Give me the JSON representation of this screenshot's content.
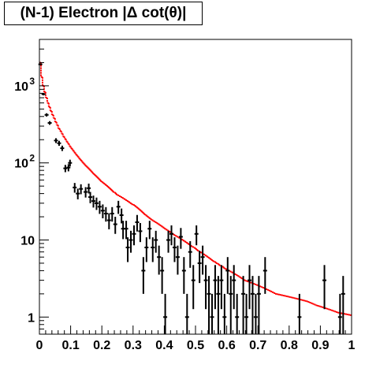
{
  "chart_data": {
    "type": "scatter",
    "title": "(N-1) Electron |Δ cot(θ)|",
    "xlabel": "",
    "ylabel": "",
    "xlim": [
      0,
      1
    ],
    "ylim": [
      0.6,
      4000
    ],
    "y_scale": "log",
    "grid": false,
    "x_ticks": [
      "0",
      "0.1",
      "0.2",
      "0.3",
      "0.4",
      "0.5",
      "0.6",
      "0.7",
      "0.8",
      "0.9",
      "1"
    ],
    "y_ticks": [
      {
        "value": 1,
        "label": "1"
      },
      {
        "value": 10,
        "label": "10"
      },
      {
        "value": 100,
        "label": "10",
        "exp": "2"
      },
      {
        "value": 1000,
        "label": "10",
        "exp": "3"
      }
    ],
    "series": [
      {
        "style": "red dashed step histogram",
        "color": "#ff0000",
        "bin_width": 0.005,
        "values": [
          2000,
          1300,
          1000,
          830,
          700,
          600,
          530,
          470,
          420,
          380,
          340,
          310,
          280,
          260,
          240,
          220,
          205,
          190,
          178,
          165,
          155,
          146,
          137,
          129,
          122,
          115,
          109,
          103,
          98,
          93,
          89,
          85,
          81,
          77,
          73,
          70,
          67,
          64,
          61,
          58,
          56,
          54,
          52,
          50,
          48,
          46,
          44,
          42,
          41,
          39,
          38,
          37,
          36,
          35,
          34,
          33,
          32,
          31,
          30,
          29,
          28.5,
          27.5,
          26.5,
          25.5,
          24.5,
          23.5,
          22.5,
          21.5,
          20.8,
          20,
          19.3,
          18.6,
          18,
          17.5,
          17,
          16.5,
          16,
          15.5,
          15,
          14.5,
          14,
          13.6,
          13.2,
          12.8,
          12.4,
          12,
          11.6,
          11.3,
          11,
          10.7,
          10.4,
          10.1,
          9.8,
          9.5,
          9.2,
          8.9,
          8.6,
          8.3,
          8.1,
          7.9,
          7.6,
          7.3,
          7.1,
          6.9,
          6.7,
          6.5,
          6.3,
          6.1,
          5.9,
          5.7,
          5.5,
          5.3,
          5.2,
          5.0,
          4.9,
          4.7,
          4.6,
          4.5,
          4.3,
          4.2,
          4.1,
          4.0,
          3.9,
          3.8,
          3.7,
          3.6,
          3.5,
          3.4,
          3.3,
          3.2,
          3.1,
          3.0,
          2.95,
          2.9,
          2.85,
          2.8,
          2.75,
          2.7,
          2.65,
          2.6,
          2.55,
          2.5,
          2.45,
          2.4,
          2.35,
          2.3,
          2.25,
          2.2,
          2.15,
          2.1,
          2.05,
          2.0,
          1.98,
          1.96,
          1.94,
          1.92,
          1.9,
          1.88,
          1.86,
          1.84,
          1.82,
          1.8,
          1.78,
          1.76,
          1.74,
          1.72,
          1.7,
          1.68,
          1.66,
          1.64,
          1.62,
          1.6,
          1.57,
          1.54,
          1.51,
          1.48,
          1.45,
          1.42,
          1.4,
          1.38,
          1.36,
          1.34,
          1.32,
          1.3,
          1.28,
          1.26,
          1.24,
          1.22,
          1.2,
          1.18,
          1.16,
          1.14,
          1.13,
          1.12,
          1.11,
          1.1,
          1.09,
          1.08,
          1.07,
          1.06
        ]
      },
      {
        "style": "black points with error bars",
        "color": "#000000",
        "points": [
          {
            "x": 0.003,
            "y": 1900
          },
          {
            "x": 0.013,
            "y": 780
          },
          {
            "x": 0.023,
            "y": 420
          },
          {
            "x": 0.033,
            "y": 330
          },
          {
            "x": 0.053,
            "y": 195
          },
          {
            "x": 0.063,
            "y": 180
          },
          {
            "x": 0.073,
            "y": 155
          },
          {
            "x": 0.083,
            "y": 85
          },
          {
            "x": 0.093,
            "y": 87
          },
          {
            "x": 0.098,
            "y": 100
          },
          {
            "x": 0.113,
            "y": 48
          },
          {
            "x": 0.123,
            "y": 40
          },
          {
            "x": 0.133,
            "y": 46
          },
          {
            "x": 0.148,
            "y": 42
          },
          {
            "x": 0.158,
            "y": 47
          },
          {
            "x": 0.163,
            "y": 36
          },
          {
            "x": 0.173,
            "y": 32
          },
          {
            "x": 0.183,
            "y": 30
          },
          {
            "x": 0.193,
            "y": 27
          },
          {
            "x": 0.203,
            "y": 24
          },
          {
            "x": 0.213,
            "y": 22
          },
          {
            "x": 0.223,
            "y": 18
          },
          {
            "x": 0.233,
            "y": 22
          },
          {
            "x": 0.243,
            "y": 16
          },
          {
            "x": 0.253,
            "y": 27
          },
          {
            "x": 0.263,
            "y": 21
          },
          {
            "x": 0.268,
            "y": 14
          },
          {
            "x": 0.278,
            "y": 14
          },
          {
            "x": 0.283,
            "y": 8
          },
          {
            "x": 0.293,
            "y": 10
          },
          {
            "x": 0.303,
            "y": 12
          },
          {
            "x": 0.313,
            "y": 17
          },
          {
            "x": 0.323,
            "y": 13
          },
          {
            "x": 0.333,
            "y": 4
          },
          {
            "x": 0.343,
            "y": 8
          },
          {
            "x": 0.353,
            "y": 14
          },
          {
            "x": 0.363,
            "y": 8
          },
          {
            "x": 0.373,
            "y": 10
          },
          {
            "x": 0.383,
            "y": 6
          },
          {
            "x": 0.393,
            "y": 4
          },
          {
            "x": 0.403,
            "y": 1
          },
          {
            "x": 0.413,
            "y": 10
          },
          {
            "x": 0.423,
            "y": 12
          },
          {
            "x": 0.433,
            "y": 8
          },
          {
            "x": 0.443,
            "y": 6
          },
          {
            "x": 0.453,
            "y": 11
          },
          {
            "x": 0.463,
            "y": 4
          },
          {
            "x": 0.473,
            "y": 1
          },
          {
            "x": 0.483,
            "y": 7
          },
          {
            "x": 0.493,
            "y": 3
          },
          {
            "x": 0.503,
            "y": 12
          },
          {
            "x": 0.513,
            "y": 5
          },
          {
            "x": 0.523,
            "y": 6
          },
          {
            "x": 0.533,
            "y": 3
          },
          {
            "x": 0.543,
            "y": 2
          },
          {
            "x": 0.553,
            "y": 1
          },
          {
            "x": 0.563,
            "y": 3
          },
          {
            "x": 0.573,
            "y": 2
          },
          {
            "x": 0.583,
            "y": 3
          },
          {
            "x": 0.593,
            "y": 1
          },
          {
            "x": 0.603,
            "y": 4
          },
          {
            "x": 0.613,
            "y": 2
          },
          {
            "x": 0.623,
            "y": 3
          },
          {
            "x": 0.633,
            "y": 1
          },
          {
            "x": 0.653,
            "y": 2
          },
          {
            "x": 0.663,
            "y": 1
          },
          {
            "x": 0.673,
            "y": 3
          },
          {
            "x": 0.683,
            "y": 2
          },
          {
            "x": 0.693,
            "y": 1
          },
          {
            "x": 0.703,
            "y": 2
          },
          {
            "x": 0.723,
            "y": 4
          },
          {
            "x": 0.833,
            "y": 1
          },
          {
            "x": 0.913,
            "y": 3
          },
          {
            "x": 0.963,
            "y": 1
          },
          {
            "x": 0.973,
            "y": 2
          }
        ]
      }
    ]
  }
}
